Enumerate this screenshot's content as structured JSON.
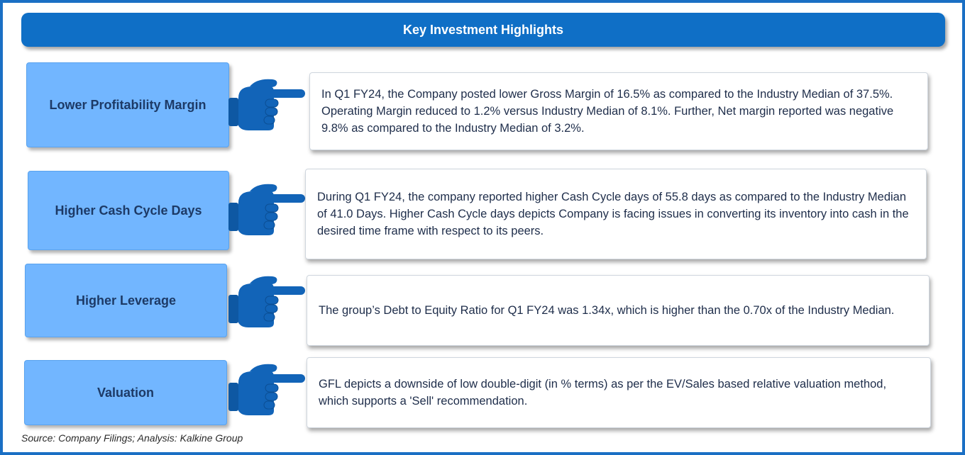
{
  "title": "Key Investment Highlights",
  "highlights": [
    {
      "label": "Lower Profitability Margin",
      "text": "In Q1 FY24, the  Company posted lower Gross Margin of 16.5% as compared to the Industry Median of 37.5%. Operating Margin reduced to 1.2% versus Industry Median of 8.1%. Further, Net margin reported was negative 9.8% as compared to the Industry Median of 3.2%."
    },
    {
      "label": "Higher Cash Cycle Days",
      "text": "During Q1 FY24, the company reported   higher Cash Cycle days of 55.8 days as compared to the Industry Median of 41.0 Days.  Higher Cash Cycle days depicts Company is facing issues in converting its inventory into cash in the desired time frame with respect to its peers."
    },
    {
      "label": "Higher Leverage",
      "text": "The group’s  Debt to Equity   Ratio for Q1 FY24 was  1.34x, which is higher than the 0.70x of the Industry Median."
    },
    {
      "label": "Valuation",
      "text": "GFL  depicts a downside of low double-digit (in % terms) as per the EV/Sales based relative valuation method, which supports a 'Sell' recommendation."
    }
  ],
  "source": "Source: Company Filings; Analysis: Kalkine Group",
  "icons": {
    "pointer": "pointing-hand-icon"
  },
  "colors": {
    "header": "#0f6fc6",
    "label_box": "#72b6ff",
    "label_text": "#1d3a66",
    "hand": "#1264b8",
    "frame": "#1a6fc4"
  }
}
